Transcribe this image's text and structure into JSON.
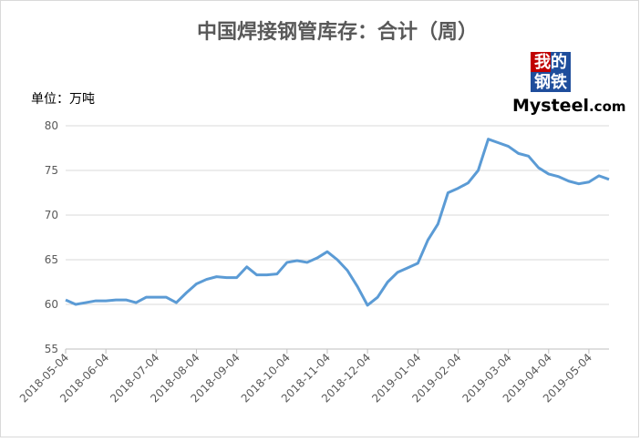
{
  "chart_data": {
    "type": "line",
    "title": "中国焊接钢管库存：合计（周）",
    "y_label": "单位：万吨",
    "logo": {
      "cn_top": "我的",
      "cn_bottom": "钢铁",
      "brand": "Mysteel",
      "domain": ".com"
    },
    "categories": [
      "2018-05-04",
      null,
      null,
      null,
      "2018-06-04",
      null,
      null,
      null,
      null,
      "2018-07-04",
      null,
      null,
      null,
      "2018-08-04",
      null,
      null,
      null,
      "2018-09-04",
      null,
      null,
      null,
      null,
      "2018-10-04",
      null,
      null,
      null,
      "2018-11-04",
      null,
      null,
      null,
      "2018-12-04",
      null,
      null,
      null,
      null,
      "2019-01-04",
      null,
      null,
      null,
      "2019-02-04",
      null,
      null,
      null,
      null,
      "2019-03-04",
      null,
      null,
      null,
      "2019-04-04",
      null,
      null,
      null,
      "2019-05-04",
      null,
      null
    ],
    "series": [
      {
        "name": "合计",
        "color": "#5b9bd5",
        "values": [
          60.5,
          60.0,
          60.2,
          60.4,
          60.4,
          60.5,
          60.5,
          60.2,
          60.8,
          60.8,
          60.8,
          60.2,
          61.3,
          62.3,
          62.8,
          63.1,
          63.0,
          63.0,
          64.2,
          63.3,
          63.3,
          63.4,
          64.7,
          64.9,
          64.7,
          65.2,
          65.9,
          65.0,
          63.8,
          62.0,
          59.9,
          60.8,
          62.5,
          63.6,
          64.1,
          64.6,
          67.2,
          69.0,
          72.5,
          73.0,
          73.6,
          75.0,
          78.5,
          78.1,
          77.7,
          76.9,
          76.6,
          75.3,
          74.6,
          74.3,
          73.8,
          73.5,
          73.7,
          74.4,
          74.0
        ]
      }
    ],
    "ylim": [
      55,
      80
    ],
    "yticks": [
      55,
      60,
      65,
      70,
      75,
      80
    ],
    "grid": true
  }
}
